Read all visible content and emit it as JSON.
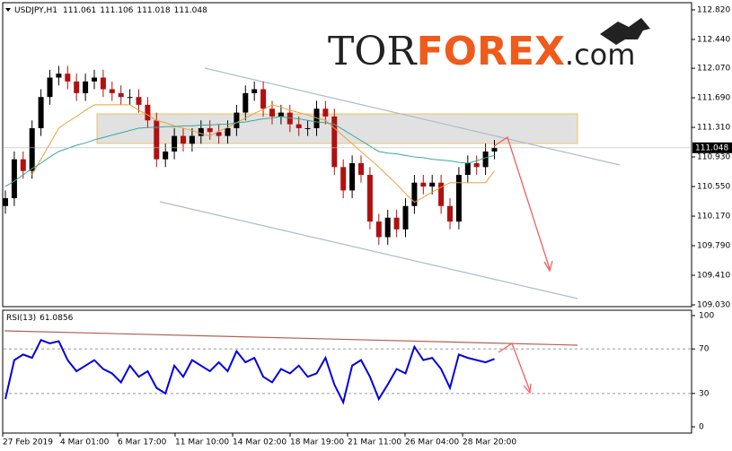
{
  "chart_data": {
    "type": "candlestick",
    "title": "USDJPY,H1",
    "last_ohlc": [
      {
        "value": 111.061,
        "label": "111.061"
      },
      {
        "value": 111.106,
        "label": "111.106"
      },
      {
        "value": 111.018,
        "label": "111.018"
      },
      {
        "value": 111.048,
        "label": "111.048"
      }
    ],
    "logo": [
      "TOR",
      "FOREX",
      ".com"
    ],
    "x_labels": [
      "27 Feb 2019",
      "4 Mar 01:00",
      "6 Mar 17:00",
      "11 Mar 10:00",
      "14 Mar 02:00",
      "18 Mar 19:00",
      "21 Mar 11:00",
      "26 Mar 04:00",
      "28 Mar 20:00"
    ],
    "ylim": [
      109.007,
      112.912
    ],
    "yticks": [
      {
        "value": 112.82,
        "label": "112.820"
      },
      {
        "value": 112.44,
        "label": "112.440"
      },
      {
        "value": 112.07,
        "label": "112.070"
      },
      {
        "value": 111.69,
        "label": "111.690"
      },
      {
        "value": 111.31,
        "label": "111.310"
      },
      {
        "value": 110.93,
        "label": "110.930"
      },
      {
        "value": 110.55,
        "label": "110.550"
      },
      {
        "value": 110.17,
        "label": "110.170"
      },
      {
        "value": 109.79,
        "label": "109.790"
      },
      {
        "value": 109.41,
        "label": "109.410"
      },
      {
        "value": 109.03,
        "label": "109.030"
      }
    ],
    "up_color": "#000000",
    "down_color": "#b01010",
    "open": [
      110.3,
      110.4,
      110.9,
      110.75,
      111.3,
      111.7,
      111.95,
      112.0,
      111.9,
      111.75,
      111.9,
      111.95,
      111.8,
      111.75,
      111.7,
      111.7,
      111.6,
      111.4,
      110.9,
      111.0,
      111.2,
      111.1,
      111.2,
      111.3,
      111.25,
      111.2,
      111.3,
      111.5,
      111.75,
      111.8,
      111.55,
      111.45,
      111.5,
      111.35,
      111.3,
      111.3,
      111.55,
      111.45,
      110.8,
      110.5,
      110.85,
      110.7,
      110.1,
      109.9,
      110.15,
      110.0,
      110.3,
      110.6,
      110.55,
      110.6,
      110.3,
      110.1,
      110.7,
      110.85,
      110.8,
      111.0
    ],
    "high": [
      110.5,
      111.0,
      111.0,
      111.4,
      111.8,
      112.05,
      112.1,
      112.1,
      112.0,
      112.0,
      112.05,
      112.05,
      111.9,
      111.85,
      111.8,
      111.8,
      111.7,
      111.5,
      111.1,
      111.3,
      111.3,
      111.3,
      111.4,
      111.4,
      111.35,
      111.4,
      111.6,
      111.85,
      111.9,
      111.9,
      111.65,
      111.6,
      111.6,
      111.45,
      111.4,
      111.65,
      111.65,
      111.55,
      110.9,
      110.95,
      110.95,
      110.8,
      110.2,
      110.25,
      110.25,
      110.4,
      110.7,
      110.7,
      110.7,
      110.7,
      110.4,
      110.8,
      110.95,
      110.95,
      111.1,
      111.15
    ],
    "low": [
      110.2,
      110.3,
      110.65,
      110.65,
      111.2,
      111.6,
      111.85,
      111.8,
      111.65,
      111.65,
      111.8,
      111.7,
      111.65,
      111.6,
      111.6,
      111.5,
      111.3,
      110.8,
      110.8,
      110.9,
      111.0,
      111.0,
      111.1,
      111.15,
      111.1,
      111.1,
      111.2,
      111.4,
      111.65,
      111.45,
      111.35,
      111.35,
      111.25,
      111.2,
      111.2,
      111.2,
      111.35,
      110.7,
      110.4,
      110.4,
      110.6,
      110.0,
      109.8,
      109.8,
      109.9,
      109.9,
      110.2,
      110.45,
      110.45,
      110.2,
      110.0,
      110.0,
      110.6,
      110.7,
      110.7,
      110.9
    ],
    "close": [
      110.4,
      110.9,
      110.75,
      111.3,
      111.7,
      111.95,
      112.0,
      111.9,
      111.75,
      111.9,
      111.95,
      111.8,
      111.75,
      111.7,
      111.7,
      111.6,
      111.4,
      110.9,
      111.0,
      111.2,
      111.1,
      111.2,
      111.3,
      111.25,
      111.2,
      111.3,
      111.5,
      111.75,
      111.8,
      111.55,
      111.45,
      111.5,
      111.35,
      111.3,
      111.3,
      111.55,
      111.45,
      110.8,
      110.5,
      110.85,
      110.7,
      110.1,
      109.9,
      110.15,
      110.0,
      110.3,
      110.6,
      110.55,
      110.6,
      110.3,
      110.1,
      110.7,
      110.85,
      110.8,
      111.0,
      111.05
    ],
    "series": [
      {
        "color": "#e8a33c",
        "values": [
          null,
          null,
          null,
          110.7,
          110.9,
          111.1,
          111.3,
          111.38,
          111.45,
          111.53,
          111.6,
          111.6,
          111.6,
          111.6,
          111.6,
          111.53,
          111.47,
          111.4,
          111.37,
          111.33,
          111.3,
          111.27,
          111.23,
          111.2,
          111.26,
          111.31,
          111.37,
          111.43,
          111.49,
          111.54,
          111.6,
          111.57,
          111.53,
          111.5,
          111.47,
          111.43,
          111.4,
          111.3,
          111.2,
          111.1,
          111.0,
          110.9,
          110.8,
          110.69,
          110.58,
          110.46,
          110.35,
          110.41,
          110.48,
          110.54,
          110.6,
          110.6,
          110.6,
          110.6,
          110.6,
          110.75
        ]
      },
      {
        "color": "#3aa89a",
        "values": [
          110.55,
          110.62,
          110.7,
          110.78,
          110.85,
          110.93,
          111.0,
          111.04,
          111.08,
          111.11,
          111.15,
          111.18,
          111.21,
          111.24,
          111.27,
          111.3,
          111.31,
          111.31,
          111.32,
          111.32,
          111.33,
          111.33,
          111.34,
          111.34,
          111.35,
          111.35,
          111.37,
          111.38,
          111.4,
          111.42,
          111.43,
          111.45,
          111.43,
          111.42,
          111.4,
          111.38,
          111.37,
          111.35,
          111.28,
          111.21,
          111.14,
          111.07,
          111.0,
          110.98,
          110.97,
          110.95,
          110.93,
          110.92,
          110.9,
          110.89,
          110.88,
          110.86,
          110.85,
          110.88,
          110.92,
          110.95
        ]
      }
    ],
    "rsi": {
      "title": "RSI(13)",
      "current": 61.0856,
      "color": "#0000e0",
      "ylim": [
        -5.6,
        104.8
      ],
      "yticks": [
        100,
        70,
        30,
        0
      ],
      "grid_levels": [
        70,
        30
      ],
      "values": [
        25,
        60,
        65,
        62,
        78,
        75,
        77,
        60,
        50,
        55,
        60,
        52,
        48,
        40,
        55,
        45,
        50,
        35,
        30,
        55,
        45,
        60,
        55,
        50,
        58,
        50,
        68,
        58,
        62,
        45,
        40,
        52,
        48,
        55,
        45,
        48,
        62,
        38,
        22,
        55,
        60,
        45,
        25,
        38,
        52,
        48,
        72,
        60,
        62,
        52,
        35,
        65,
        62,
        60,
        58,
        61
      ]
    }
  }
}
